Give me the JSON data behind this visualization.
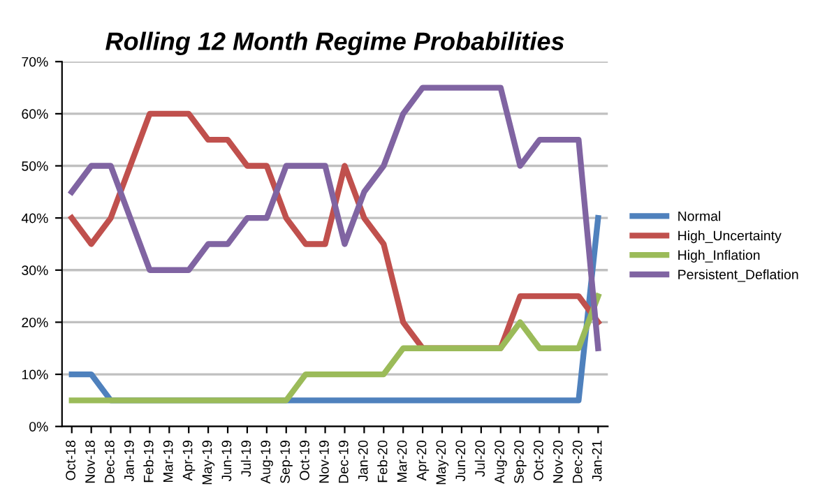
{
  "chart_data": {
    "type": "line",
    "title": "Rolling 12 Month Regime Probabilities",
    "categories": [
      "Oct-18",
      "Nov-18",
      "Dec-18",
      "Jan-19",
      "Feb-19",
      "Mar-19",
      "Apr-19",
      "May-19",
      "Jun-19",
      "Jul-19",
      "Aug-19",
      "Sep-19",
      "Oct-19",
      "Nov-19",
      "Dec-19",
      "Jan-20",
      "Feb-20",
      "Mar-20",
      "Apr-20",
      "May-20",
      "Jun-20",
      "Jul-20",
      "Aug-20",
      "Sep-20",
      "Oct-20",
      "Nov-20",
      "Dec-20",
      "Jan-21"
    ],
    "series": [
      {
        "name": "Normal",
        "color": "#4f81bd",
        "values": [
          10,
          10,
          5,
          5,
          5,
          5,
          5,
          5,
          5,
          5,
          5,
          5,
          5,
          5,
          5,
          5,
          5,
          5,
          5,
          5,
          5,
          5,
          5,
          5,
          5,
          5,
          5,
          40
        ]
      },
      {
        "name": "High_Uncertainty",
        "color": "#c0504d",
        "values": [
          40,
          35,
          40,
          50,
          60,
          60,
          60,
          55,
          55,
          50,
          50,
          40,
          35,
          35,
          50,
          40,
          35,
          20,
          15,
          null,
          null,
          null,
          15,
          25,
          25,
          25,
          25,
          20
        ]
      },
      {
        "name": "High_Inflation",
        "color": "#9bbb59",
        "values": [
          5,
          5,
          5,
          5,
          5,
          5,
          5,
          5,
          5,
          5,
          5,
          5,
          10,
          10,
          10,
          10,
          10,
          15,
          15,
          15,
          15,
          15,
          15,
          20,
          15,
          15,
          15,
          25
        ]
      },
      {
        "name": "Persistent_Deflation",
        "color": "#8064a2",
        "values": [
          45,
          50,
          50,
          40,
          30,
          30,
          30,
          35,
          35,
          40,
          40,
          50,
          50,
          50,
          35,
          45,
          50,
          60,
          65,
          65,
          65,
          65,
          65,
          50,
          55,
          55,
          55,
          15
        ]
      }
    ],
    "ylim": [
      0,
      70
    ],
    "yticks": [
      {
        "value": 0,
        "label": "0%"
      },
      {
        "value": 10,
        "label": "10%"
      },
      {
        "value": 20,
        "label": "20%"
      },
      {
        "value": 30,
        "label": "30%"
      },
      {
        "value": 40,
        "label": "40%"
      },
      {
        "value": 50,
        "label": "50%"
      },
      {
        "value": 60,
        "label": "60%"
      },
      {
        "value": 70,
        "label": "70%"
      }
    ],
    "grid": "y",
    "legend": "right",
    "marker": "none",
    "line_style": "solid"
  }
}
